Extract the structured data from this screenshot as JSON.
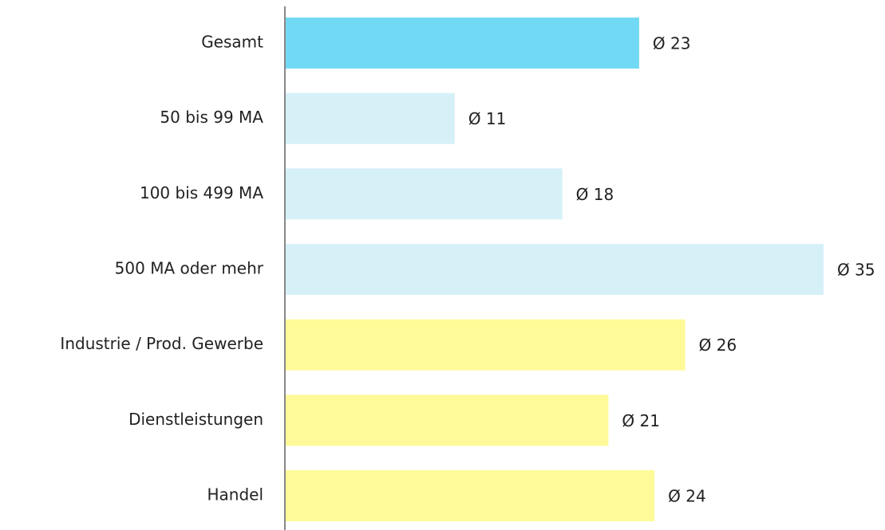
{
  "chart_data": {
    "type": "bar",
    "orientation": "horizontal",
    "categories": [
      "Gesamt",
      "50 bis 99 MA",
      "100 bis 499 MA",
      "500 MA oder mehr",
      "Industrie / Prod. Gewerbe",
      "Dienstleistungen",
      "Handel"
    ],
    "values": [
      23,
      11,
      18,
      35,
      26,
      21,
      24
    ],
    "value_labels": [
      "Ø 23",
      "Ø 11",
      "Ø 18",
      "Ø 35",
      "Ø 26",
      "Ø 21",
      "Ø 24"
    ],
    "colors": [
      "#72d9f4",
      "#d6f0f7",
      "#d6f0f7",
      "#d6f0f7",
      "#fffa98",
      "#fffa98",
      "#fffa98"
    ],
    "xlim": [
      0,
      35
    ]
  }
}
